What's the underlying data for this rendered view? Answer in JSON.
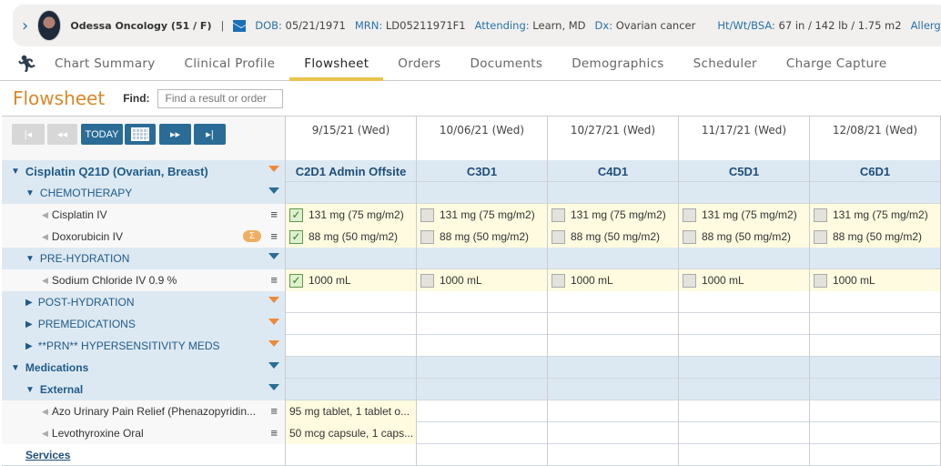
{
  "patient": {
    "name": "Odessa Oncology (51 / F)",
    "dob_label": "DOB:",
    "dob": "05/21/1971",
    "mrn_label": "MRN:",
    "mrn": "LD05211971F1",
    "attending_label": "Attending:",
    "attending": "Learn, MD",
    "dx_label": "Dx:",
    "dx": "Ovarian cancer",
    "htwt_label": "Ht/Wt/BSA:",
    "htwt": "67 in / 142 lb / 1.75 m2",
    "allergies_label": "Allergie"
  },
  "tabs": [
    "Chart Summary",
    "Clinical Profile",
    "Flowsheet",
    "Orders",
    "Documents",
    "Demographics",
    "Scheduler",
    "Charge Capture"
  ],
  "active_tab": "Flowsheet",
  "flowsheet": {
    "title": "Flowsheet",
    "find_label": "Find:",
    "find_placeholder": "Find a result or order",
    "today_label": "TODAY"
  },
  "dates": [
    "9/15/21 (Wed)",
    "10/06/21 (Wed)",
    "10/27/21 (Wed)",
    "11/17/21 (Wed)",
    "12/08/21 (Wed)"
  ],
  "cycles": [
    "C2D1 Admin Offsite",
    "C3D1",
    "C4D1",
    "C5D1",
    "C6D1"
  ],
  "plan": "Cisplatin Q21D (Ovarian, Breast)",
  "rows": {
    "chemo": "CHEMOTHERAPY",
    "cisplatin": {
      "label": "Cisplatin IV",
      "values": [
        "131 mg (75 mg/m2)",
        "131 mg (75 mg/m2)",
        "131 mg (75 mg/m2)",
        "131 mg (75 mg/m2)",
        "131 mg (75 mg/m2)"
      ]
    },
    "doxo": {
      "label": "Doxorubicin IV",
      "sigma": "Σ",
      "values": [
        "88 mg (50 mg/m2)",
        "88 mg (50 mg/m2)",
        "88 mg (50 mg/m2)",
        "88 mg (50 mg/m2)",
        "88 mg (50 mg/m2)"
      ]
    },
    "prehyd": "PRE-HYDRATION",
    "nacl": {
      "label": "Sodium Chloride IV 0.9 %",
      "values": [
        "1000 mL",
        "1000 mL",
        "1000 mL",
        "1000 mL",
        "1000 mL"
      ]
    },
    "posthyd": "POST-HYDRATION",
    "premed": "PREMEDICATIONS",
    "prn": "**PRN** HYPERSENSITIVITY MEDS",
    "meds": "Medications",
    "external": "External",
    "azo": {
      "label": "Azo Urinary Pain Relief (Phenazopyridin...",
      "value": "95 mg tablet, 1 tablet o..."
    },
    "levo": {
      "label": "Levothyroxine Oral",
      "value": "50 mcg capsule, 1 caps..."
    },
    "services": "Services"
  },
  "checked": [
    true,
    false,
    false,
    false,
    false
  ],
  "colors": {
    "accent": "#2a6c96",
    "flowsheet_title": "#d8882a",
    "tab_underline": "#e8c44a",
    "group_bg": "#dde9f2",
    "cell_bg": "#fffbe0"
  }
}
